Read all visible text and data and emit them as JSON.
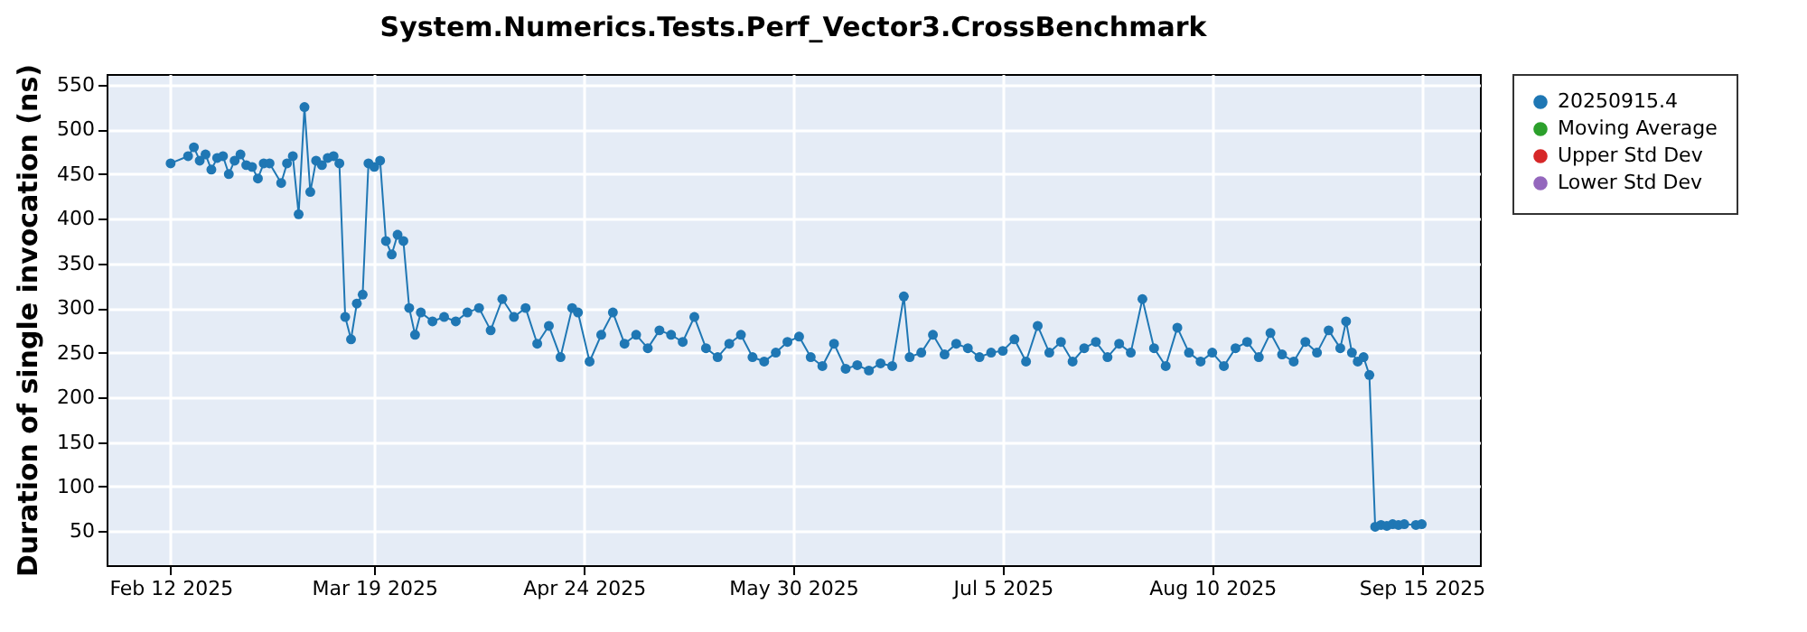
{
  "chart_data": {
    "type": "line",
    "title": "System.Numerics.Tests.Perf_Vector3.CrossBenchmark",
    "ylabel": "Duration of single invocation (ns)",
    "x": [
      "2025-02-12",
      "2025-02-15",
      "2025-02-16",
      "2025-02-17",
      "2025-02-18",
      "2025-02-19",
      "2025-02-20",
      "2025-02-21",
      "2025-02-22",
      "2025-02-23",
      "2025-02-24",
      "2025-02-25",
      "2025-02-26",
      "2025-02-27",
      "2025-02-28",
      "2025-03-01",
      "2025-03-03",
      "2025-03-04",
      "2025-03-05",
      "2025-03-06",
      "2025-03-07",
      "2025-03-08",
      "2025-03-09",
      "2025-03-10",
      "2025-03-11",
      "2025-03-12",
      "2025-03-13",
      "2025-03-14",
      "2025-03-15",
      "2025-03-16",
      "2025-03-17",
      "2025-03-18",
      "2025-03-19",
      "2025-03-20",
      "2025-03-21",
      "2025-03-22",
      "2025-03-23",
      "2025-03-24",
      "2025-03-25",
      "2025-03-26",
      "2025-03-27",
      "2025-03-29",
      "2025-03-31",
      "2025-04-02",
      "2025-04-04",
      "2025-04-06",
      "2025-04-08",
      "2025-04-10",
      "2025-04-12",
      "2025-04-14",
      "2025-04-16",
      "2025-04-18",
      "2025-04-20",
      "2025-04-22",
      "2025-04-23",
      "2025-04-25",
      "2025-04-27",
      "2025-04-29",
      "2025-05-01",
      "2025-05-03",
      "2025-05-05",
      "2025-05-07",
      "2025-05-09",
      "2025-05-11",
      "2025-05-13",
      "2025-05-15",
      "2025-05-17",
      "2025-05-19",
      "2025-05-21",
      "2025-05-23",
      "2025-05-25",
      "2025-05-27",
      "2025-05-29",
      "2025-05-31",
      "2025-06-02",
      "2025-06-04",
      "2025-06-06",
      "2025-06-08",
      "2025-06-10",
      "2025-06-12",
      "2025-06-14",
      "2025-06-16",
      "2025-06-18",
      "2025-06-19",
      "2025-06-21",
      "2025-06-23",
      "2025-06-25",
      "2025-06-27",
      "2025-06-29",
      "2025-07-01",
      "2025-07-03",
      "2025-07-05",
      "2025-07-07",
      "2025-07-09",
      "2025-07-11",
      "2025-07-13",
      "2025-07-15",
      "2025-07-17",
      "2025-07-19",
      "2025-07-21",
      "2025-07-23",
      "2025-07-25",
      "2025-07-27",
      "2025-07-29",
      "2025-07-31",
      "2025-08-02",
      "2025-08-04",
      "2025-08-06",
      "2025-08-08",
      "2025-08-10",
      "2025-08-12",
      "2025-08-14",
      "2025-08-16",
      "2025-08-18",
      "2025-08-20",
      "2025-08-22",
      "2025-08-24",
      "2025-08-26",
      "2025-08-28",
      "2025-08-30",
      "2025-09-01",
      "2025-09-02",
      "2025-09-03",
      "2025-09-04",
      "2025-09-05",
      "2025-09-06",
      "2025-09-07",
      "2025-09-08",
      "2025-09-09",
      "2025-09-10",
      "2025-09-11",
      "2025-09-12",
      "2025-09-14",
      "2025-09-15"
    ],
    "series": [
      {
        "name": "20250915.4",
        "color": "#1f77b4",
        "values": [
          462,
          470,
          480,
          465,
          472,
          455,
          468,
          470,
          450,
          465,
          472,
          460,
          458,
          445,
          462,
          462,
          440,
          462,
          470,
          405,
          525,
          430,
          465,
          460,
          468,
          470,
          462,
          290,
          265,
          305,
          315,
          462,
          458,
          465,
          375,
          360,
          382,
          375,
          300,
          270,
          295,
          285,
          290,
          285,
          295,
          300,
          275,
          310,
          290,
          300,
          260,
          280,
          245,
          300,
          295,
          240,
          270,
          295,
          260,
          270,
          255,
          275,
          270,
          262,
          290,
          255,
          245,
          260,
          270,
          245,
          240,
          250,
          262,
          268,
          245,
          235,
          260,
          232,
          236,
          230,
          238,
          235,
          313,
          245,
          250,
          270,
          248,
          260,
          255,
          245,
          250,
          252,
          265,
          240,
          280,
          250,
          262,
          240,
          255,
          262,
          245,
          260,
          250,
          310,
          255,
          235,
          278,
          250,
          240,
          250,
          235,
          255,
          262,
          245,
          272,
          248,
          240,
          262,
          250,
          275,
          255,
          285,
          250,
          240,
          245,
          225,
          55,
          57,
          56,
          58,
          57,
          58,
          57,
          58
        ]
      },
      {
        "name": "Moving Average",
        "color": "#2ca02c",
        "values": [
          null,
          null,
          null,
          null,
          null,
          null,
          null,
          null,
          null,
          null,
          null,
          null,
          null,
          null,
          null,
          null,
          null,
          null,
          null,
          null,
          null,
          null,
          null,
          null,
          null,
          null,
          null,
          null,
          null,
          null,
          null,
          null,
          null,
          null,
          null,
          null,
          null,
          null,
          null,
          null,
          null,
          null,
          null,
          null,
          null,
          null,
          null,
          null,
          null,
          null,
          null,
          null,
          null,
          null,
          null,
          null,
          null,
          null,
          null,
          null,
          null,
          null,
          null,
          null,
          null,
          null,
          null,
          null,
          null,
          null,
          null,
          null,
          null,
          null,
          null,
          null,
          null,
          null,
          null,
          null,
          null,
          null,
          null,
          null,
          null,
          null,
          null,
          null,
          null,
          null,
          null,
          null,
          null,
          null,
          null,
          null,
          null,
          null,
          null,
          null,
          null,
          null,
          null,
          null,
          null,
          null,
          null,
          null,
          null,
          null,
          null,
          null,
          null,
          null,
          null,
          null,
          null,
          null,
          null,
          null,
          null,
          null,
          null,
          null,
          null,
          null,
          null,
          null,
          null,
          null,
          null,
          null,
          null,
          null
        ]
      },
      {
        "name": "Upper Std Dev",
        "color": "#d62728",
        "values": [
          null,
          null,
          null,
          null,
          null,
          null,
          null,
          null,
          null,
          null,
          null,
          null,
          null,
          null,
          null,
          null,
          null,
          null,
          null,
          null,
          null,
          null,
          null,
          null,
          null,
          null,
          null,
          null,
          null,
          null,
          null,
          null,
          null,
          null,
          null,
          null,
          null,
          null,
          null,
          null,
          null,
          null,
          null,
          null,
          null,
          null,
          null,
          null,
          null,
          null,
          null,
          null,
          null,
          null,
          null,
          null,
          null,
          null,
          null,
          null,
          null,
          null,
          null,
          null,
          null,
          null,
          null,
          null,
          null,
          null,
          null,
          null,
          null,
          null,
          null,
          null,
          null,
          null,
          null,
          null,
          null,
          null,
          null,
          null,
          null,
          null,
          null,
          null,
          null,
          null,
          null,
          null,
          null,
          null,
          null,
          null,
          null,
          null,
          null,
          null,
          null,
          null,
          null,
          null,
          null,
          null,
          null,
          null,
          null,
          null,
          null,
          null,
          null,
          null,
          null,
          null,
          null,
          null,
          null,
          null,
          null,
          null,
          null,
          null,
          null,
          null,
          null,
          null,
          null,
          null,
          null,
          null,
          null,
          null
        ]
      },
      {
        "name": "Lower Std Dev",
        "color": "#9467bd",
        "values": [
          null,
          null,
          null,
          null,
          null,
          null,
          null,
          null,
          null,
          null,
          null,
          null,
          null,
          null,
          null,
          null,
          null,
          null,
          null,
          null,
          null,
          null,
          null,
          null,
          null,
          null,
          null,
          null,
          null,
          null,
          null,
          null,
          null,
          null,
          null,
          null,
          null,
          null,
          null,
          null,
          null,
          null,
          null,
          null,
          null,
          null,
          null,
          null,
          null,
          null,
          null,
          null,
          null,
          null,
          null,
          null,
          null,
          null,
          null,
          null,
          null,
          null,
          null,
          null,
          null,
          null,
          null,
          null,
          null,
          null,
          null,
          null,
          null,
          null,
          null,
          null,
          null,
          null,
          null,
          null,
          null,
          null,
          null,
          null,
          null,
          null,
          null,
          null,
          null,
          null,
          null,
          null,
          null,
          null,
          null,
          null,
          null,
          null,
          null,
          null,
          null,
          null,
          null,
          null,
          null,
          null,
          null,
          null,
          null,
          null,
          null,
          null,
          null,
          null,
          null,
          null,
          null,
          null,
          null,
          null,
          null,
          null,
          null,
          null,
          null,
          null,
          null,
          null,
          null,
          null,
          null,
          null,
          null,
          null
        ]
      }
    ],
    "xlim": [
      "2025-02-01",
      "2025-09-25"
    ],
    "xticks": [
      {
        "value": "2025-02-12",
        "label": "Feb 12 2025"
      },
      {
        "value": "2025-03-19",
        "label": "Mar 19 2025"
      },
      {
        "value": "2025-04-24",
        "label": "Apr 24 2025"
      },
      {
        "value": "2025-05-30",
        "label": "May 30 2025"
      },
      {
        "value": "2025-07-05",
        "label": "Jul 5 2025"
      },
      {
        "value": "2025-08-10",
        "label": "Aug 10 2025"
      },
      {
        "value": "2025-09-15",
        "label": "Sep 15 2025"
      }
    ],
    "ylim": [
      12,
      562
    ],
    "yticks": [
      50,
      100,
      150,
      200,
      250,
      300,
      350,
      400,
      450,
      500,
      550
    ],
    "grid": true,
    "legend": "right",
    "marker": "circle",
    "line_style": "solid"
  }
}
